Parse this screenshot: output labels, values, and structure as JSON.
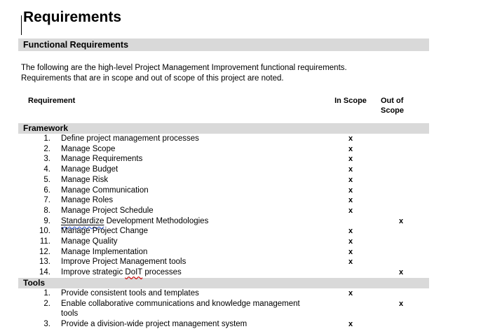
{
  "document": {
    "title": "Requirements",
    "section_heading": "Functional Requirements",
    "intro_line1": "The following are the high-level Project Management Improvement functional requirements.",
    "intro_line2": "Requirements that are in scope and out of scope of this project are noted."
  },
  "table": {
    "header": {
      "requirement": "Requirement",
      "in_scope": "In Scope",
      "out_of_scope": "Out of Scope"
    },
    "mark": "x",
    "sections": [
      {
        "name": "Framework",
        "rows": [
          {
            "num": "1.",
            "label": "Define project management processes",
            "scope": "in"
          },
          {
            "num": "2.",
            "label": "Manage Scope",
            "scope": "in"
          },
          {
            "num": "3.",
            "label": "Manage Requirements",
            "scope": "in"
          },
          {
            "num": "4.",
            "label": "Manage Budget",
            "scope": "in"
          },
          {
            "num": "5.",
            "label": "Manage Risk",
            "scope": "in"
          },
          {
            "num": "6.",
            "label": "Manage Communication",
            "scope": "in"
          },
          {
            "num": "7.",
            "label": "Manage Roles",
            "scope": "in"
          },
          {
            "num": "8.",
            "label": "Manage Project Schedule",
            "scope": "in"
          },
          {
            "num": "9.",
            "label_parts": [
              {
                "text": "Standardize",
                "mark": "underline-blue-wavy"
              },
              {
                "text": " Development Methodologies"
              }
            ],
            "scope": "out"
          },
          {
            "num": "10.",
            "label": "Manage Project Change",
            "scope": "in"
          },
          {
            "num": "11.",
            "label": "Manage Quality",
            "scope": "in"
          },
          {
            "num": "12.",
            "label": "Manage Implementation",
            "scope": "in"
          },
          {
            "num": "13.",
            "label": "Improve Project Management tools",
            "scope": "in"
          },
          {
            "num": "14.",
            "label_parts": [
              {
                "text": "Improve strategic "
              },
              {
                "text": "DoIT",
                "mark": "red-wavy"
              },
              {
                "text": " processes"
              }
            ],
            "scope": "out"
          }
        ]
      },
      {
        "name": "Tools",
        "rows": [
          {
            "num": "1.",
            "label": "Provide consistent tools and templates",
            "scope": "in"
          },
          {
            "num": "2.",
            "label": "Enable collaborative communications and knowledge management\ntools",
            "scope": "out"
          },
          {
            "num": "3.",
            "label": "Provide a division-wide project management system",
            "scope": "in"
          }
        ]
      }
    ]
  },
  "colors": {
    "section_bar_bg": "#d9d9d9",
    "spellcheck_underline": "#cc0000",
    "grammar_underline": "#3a5fcd",
    "text": "#000000"
  }
}
